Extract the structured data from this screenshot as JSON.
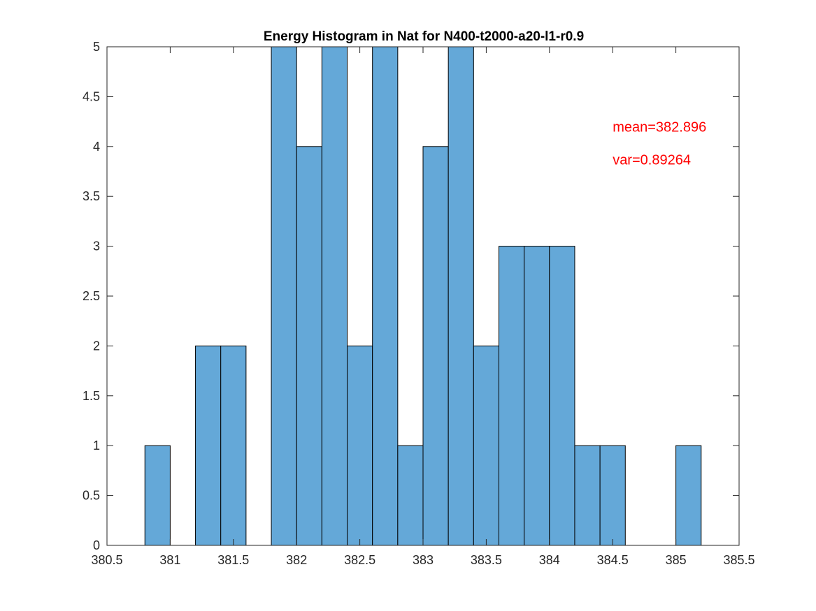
{
  "chart_data": {
    "type": "bar",
    "subtype": "histogram",
    "title": "Energy Histogram in Nat for N400-t2000-a20-l1-r0.9",
    "xlabel": "",
    "ylabel": "",
    "bin_edges": [
      380.8,
      381.0,
      381.2,
      381.4,
      381.6,
      381.8,
      382.0,
      382.2,
      382.4,
      382.6,
      382.8,
      383.0,
      383.2,
      383.4,
      383.6,
      383.8,
      384.0,
      384.2,
      384.4,
      384.6,
      384.8,
      385.0,
      385.2
    ],
    "counts": [
      1,
      0,
      2,
      2,
      0,
      5,
      4,
      5,
      2,
      5,
      1,
      4,
      5,
      2,
      3,
      3,
      3,
      1,
      1,
      0,
      0,
      1
    ],
    "xlim": [
      380.5,
      385.5
    ],
    "ylim": [
      0,
      5
    ],
    "xticks": [
      380.5,
      381,
      381.5,
      382,
      382.5,
      383,
      383.5,
      384,
      384.5,
      385,
      385.5
    ],
    "xtick_labels": [
      "380.5",
      "381",
      "381.5",
      "382",
      "382.5",
      "383",
      "383.5",
      "384",
      "384.5",
      "385",
      "385.5"
    ],
    "yticks": [
      0,
      0.5,
      1,
      1.5,
      2,
      2.5,
      3,
      3.5,
      4,
      4.5,
      5
    ],
    "ytick_labels": [
      "0",
      "0.5",
      "1",
      "1.5",
      "2",
      "2.5",
      "3",
      "3.5",
      "4",
      "4.5",
      "5"
    ],
    "grid": false,
    "bar_color": "#64a8d8",
    "edge_color": "#000000",
    "annotations": [
      {
        "text": "mean=382.896",
        "x": 384.5,
        "y": 4.15,
        "color": "#ff0000"
      },
      {
        "text": "var=0.89264",
        "x": 384.5,
        "y": 3.82,
        "color": "#ff0000"
      }
    ]
  }
}
